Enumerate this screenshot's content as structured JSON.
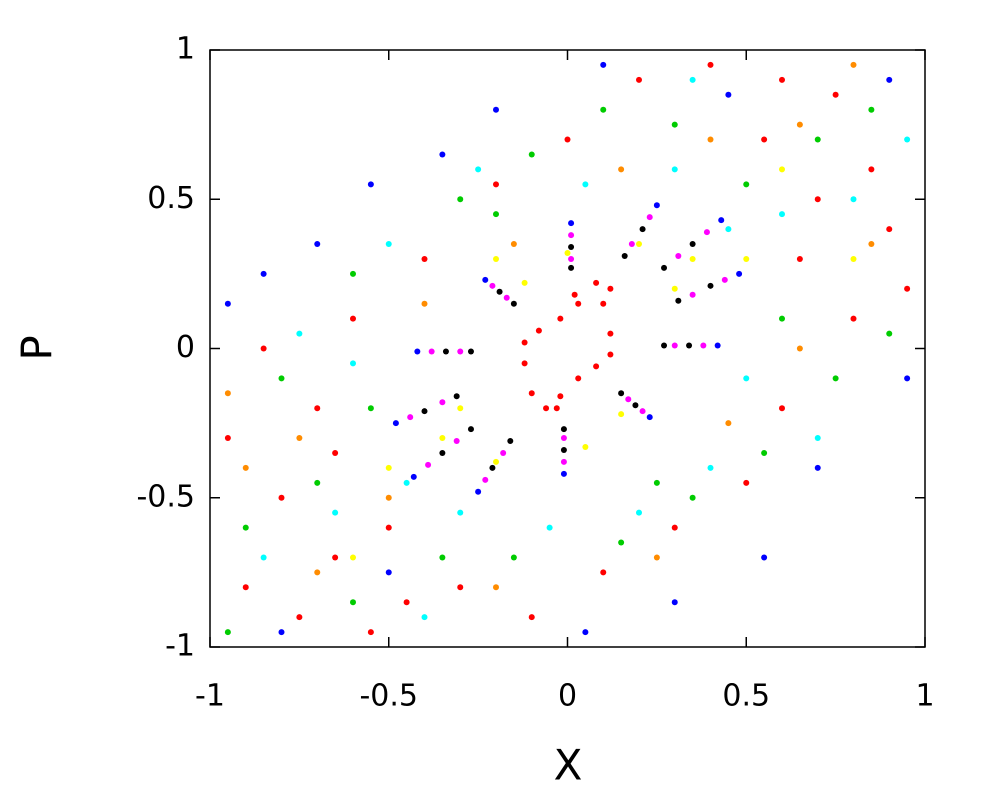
{
  "chart_data": {
    "type": "scatter",
    "xlabel": "X",
    "ylabel": "P",
    "xlim": [
      -1,
      1
    ],
    "ylim": [
      -1,
      1
    ],
    "xticks": [
      -1,
      -0.5,
      0,
      0.5,
      1
    ],
    "yticks": [
      -1,
      -0.5,
      0,
      0.5,
      1
    ],
    "series": [
      {
        "color": "#ff0000",
        "x": [
          -0.9,
          -0.75,
          -0.8,
          -0.65,
          -0.95,
          -0.55,
          -0.7,
          -0.85,
          -0.5,
          -0.45,
          -0.6,
          -0.4,
          -0.2,
          0,
          0.2,
          0.4,
          0.6,
          0.75,
          0.85,
          0.9,
          0.7,
          0.55,
          0.95,
          0.8,
          0.6,
          0.5,
          0.3,
          0.1,
          -0.1,
          -0.3,
          0.65,
          -0.65,
          0.12,
          0.08,
          0.03,
          -0.02,
          -0.08,
          -0.12,
          -0.12,
          -0.1,
          -0.06,
          -0.02,
          0.03,
          0.08,
          0.12,
          0.12,
          0.1,
          0.02,
          -0.03
        ],
        "y": [
          -0.8,
          -0.9,
          -0.5,
          -0.7,
          -0.3,
          -0.95,
          -0.2,
          0,
          -0.6,
          -0.85,
          0.1,
          0.3,
          0.55,
          0.7,
          0.9,
          0.95,
          0.9,
          0.85,
          0.6,
          0.4,
          0.5,
          0.7,
          0.2,
          0.1,
          -0.2,
          -0.45,
          -0.6,
          -0.75,
          -0.9,
          -0.8,
          0.3,
          -0.35,
          0.2,
          0.22,
          0.15,
          0.1,
          0.06,
          0.02,
          -0.05,
          -0.15,
          -0.2,
          -0.16,
          -0.1,
          -0.06,
          -0.02,
          0.05,
          0.15,
          0.18,
          -0.2
        ]
      },
      {
        "color": "#00cc00",
        "x": [
          -0.9,
          -0.7,
          -0.6,
          -0.35,
          -0.8,
          -0.6,
          -0.3,
          -0.1,
          0.1,
          0.3,
          0.5,
          0.7,
          0.85,
          0.9,
          0.75,
          0.55,
          0.35,
          0.15,
          -0.15,
          -0.95,
          0.6,
          -0.55,
          -0.2,
          0.25
        ],
        "y": [
          -0.6,
          -0.45,
          -0.85,
          -0.7,
          -0.1,
          0.25,
          0.5,
          0.65,
          0.8,
          0.75,
          0.55,
          0.7,
          0.8,
          0.05,
          -0.1,
          -0.35,
          -0.5,
          -0.65,
          -0.7,
          -0.95,
          0.1,
          -0.2,
          0.45,
          -0.45
        ]
      },
      {
        "color": "#00ffff",
        "x": [
          -0.85,
          -0.65,
          -0.45,
          -0.75,
          -0.5,
          -0.25,
          0.05,
          0.3,
          0.45,
          0.6,
          0.8,
          0.7,
          0.5,
          0.4,
          0.2,
          -0.05,
          -0.3,
          -0.6,
          0.35,
          -0.4,
          0.95
        ],
        "y": [
          -0.7,
          -0.55,
          -0.45,
          0.05,
          0.35,
          0.6,
          0.55,
          0.6,
          0.4,
          0.45,
          0.5,
          -0.3,
          -0.1,
          -0.4,
          -0.55,
          -0.6,
          -0.55,
          -0.05,
          0.9,
          -0.9,
          0.7
        ]
      },
      {
        "color": "#ff8c00",
        "x": [
          -0.9,
          -0.7,
          -0.5,
          -0.4,
          -0.15,
          0.15,
          0.4,
          0.65,
          0.85,
          0.65,
          0.45,
          0.25,
          -0.2,
          -0.75,
          0.8,
          -0.95
        ],
        "y": [
          -0.4,
          -0.75,
          -0.5,
          0.15,
          0.35,
          0.6,
          0.7,
          0.75,
          0.35,
          0,
          -0.25,
          -0.7,
          -0.8,
          -0.3,
          0.95,
          -0.15
        ]
      },
      {
        "color": "#0000ff",
        "x": [
          0.43,
          0.25,
          0.01,
          -0.23,
          -0.42,
          -0.48,
          -0.43,
          -0.25,
          -0.01,
          0.23,
          0.42,
          0.48,
          -0.95,
          -0.85,
          -0.7,
          -0.55,
          -0.35,
          -0.2,
          0.1,
          0.45,
          0.9,
          0.95,
          0.7,
          0.55,
          0.3,
          0.05,
          -0.5,
          -0.8
        ],
        "y": [
          0.43,
          0.48,
          0.42,
          0.23,
          -0.01,
          -0.25,
          -0.43,
          -0.48,
          -0.42,
          -0.23,
          0.01,
          0.25,
          0.15,
          0.25,
          0.35,
          0.55,
          0.65,
          0.8,
          0.95,
          0.85,
          0.9,
          -0.1,
          -0.4,
          -0.7,
          -0.85,
          -0.95,
          -0.75,
          -0.95
        ]
      },
      {
        "color": "#ffff00",
        "x": [
          0.2,
          -0.2,
          0.3,
          -0.3,
          0,
          0.05,
          0.35,
          -0.35,
          -0.12,
          0.15,
          0.5,
          -0.5,
          0.6,
          -0.6,
          0.8,
          -0.2
        ],
        "y": [
          0.35,
          -0.38,
          0.2,
          -0.2,
          0.32,
          -0.33,
          0.3,
          -0.3,
          0.22,
          -0.22,
          0.3,
          -0.4,
          0.6,
          -0.7,
          0.3,
          0.3
        ]
      },
      {
        "color": "#000000",
        "x": [
          0.27,
          0.16,
          0.01,
          -0.15,
          -0.27,
          -0.31,
          -0.27,
          -0.16,
          -0.01,
          0.15,
          0.27,
          0.31,
          0.35,
          0.21,
          0.01,
          -0.19,
          -0.34,
          -0.4,
          -0.35,
          -0.21,
          -0.01,
          0.19,
          0.34,
          0.4
        ],
        "y": [
          0.27,
          0.31,
          0.27,
          0.15,
          -0.01,
          -0.16,
          -0.27,
          -0.31,
          -0.27,
          -0.15,
          0.01,
          0.16,
          0.35,
          0.4,
          0.34,
          0.19,
          -0.01,
          -0.21,
          -0.35,
          -0.4,
          -0.34,
          -0.19,
          0.01,
          0.21
        ]
      },
      {
        "color": "#ff00ff",
        "x": [
          0.39,
          0.23,
          0.01,
          -0.21,
          -0.38,
          -0.44,
          -0.39,
          -0.23,
          -0.01,
          0.21,
          0.38,
          0.44,
          0.31,
          0.18,
          0.01,
          -0.17,
          -0.3,
          -0.35,
          -0.31,
          -0.18,
          -0.01,
          0.17,
          0.3,
          0.35
        ],
        "y": [
          0.39,
          0.44,
          0.38,
          0.21,
          -0.01,
          -0.23,
          -0.39,
          -0.44,
          -0.38,
          -0.21,
          0.01,
          0.23,
          0.31,
          0.35,
          0.3,
          0.17,
          -0.01,
          -0.18,
          -0.31,
          -0.35,
          -0.3,
          -0.17,
          0.01,
          0.18
        ]
      }
    ]
  }
}
